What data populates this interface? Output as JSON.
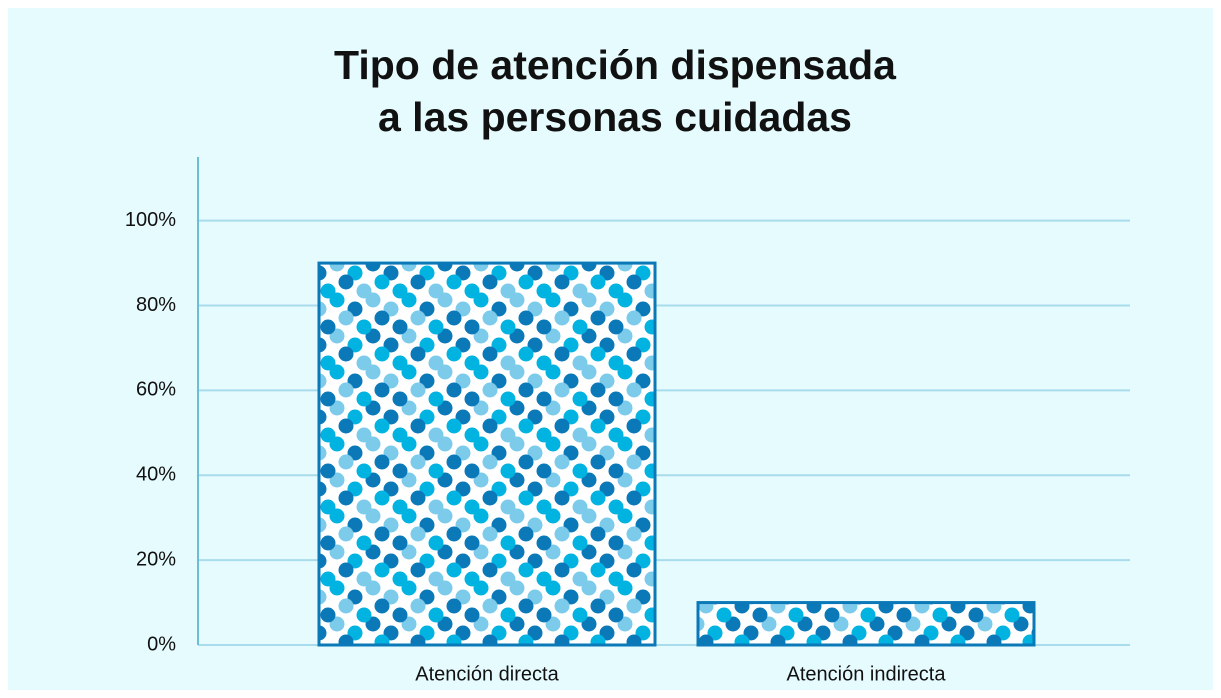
{
  "chart_data": {
    "type": "bar",
    "title": [
      "Tipo de atención dispensada",
      "a las personas cuidadas"
    ],
    "categories": [
      "Atención directa",
      "Atención indirecta"
    ],
    "values": [
      90,
      10
    ],
    "color": "#0b78b8",
    "ylim": [
      0,
      115
    ],
    "yticks": [
      {
        "value": 0,
        "label": "0%"
      },
      {
        "value": 20,
        "label": "20%"
      },
      {
        "value": 40,
        "label": "40%"
      },
      {
        "value": 60,
        "label": "60%"
      },
      {
        "value": 80,
        "label": "80%"
      },
      {
        "value": 100,
        "label": "100%"
      }
    ],
    "grid": true
  }
}
